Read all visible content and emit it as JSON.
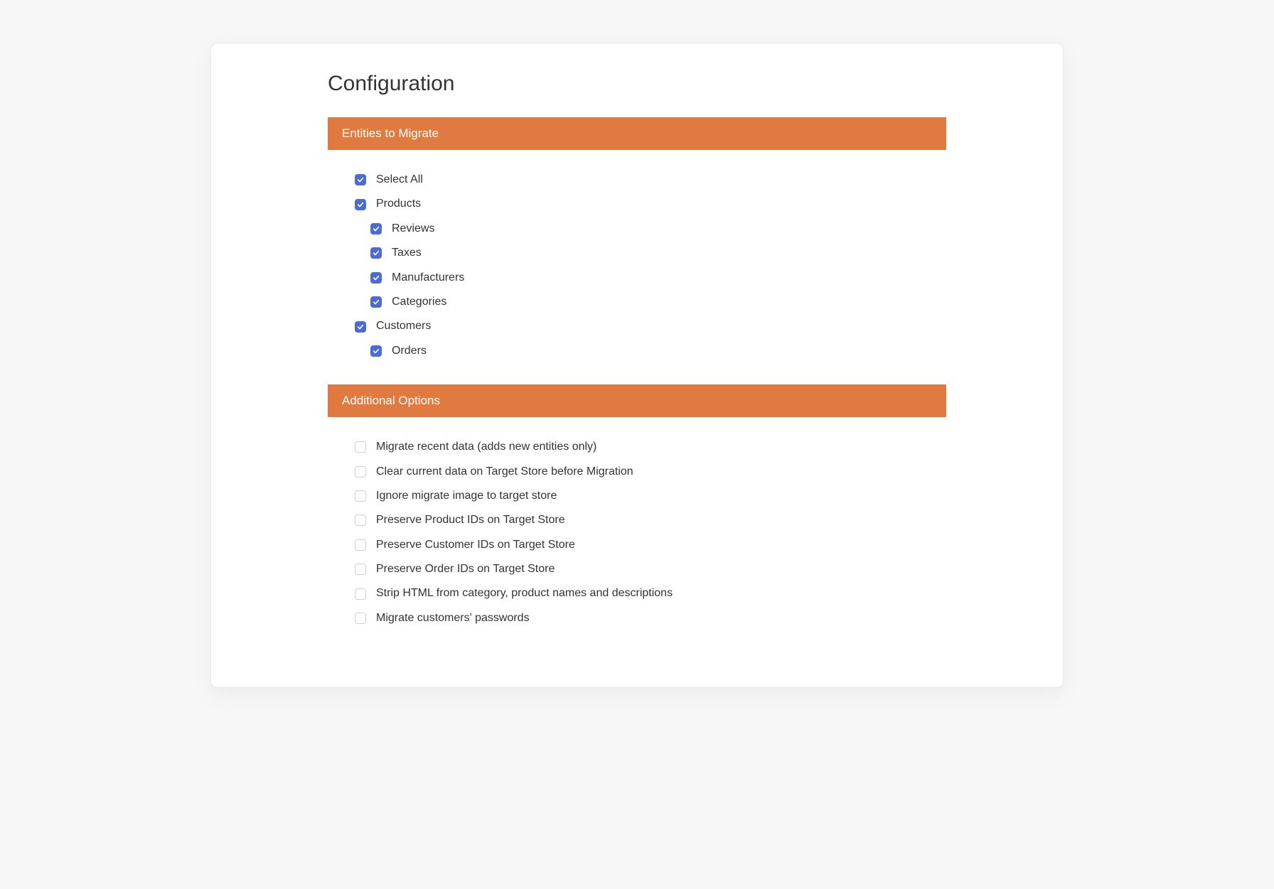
{
  "colors": {
    "page_bg": "#f7f7f7",
    "card_bg": "#ffffff",
    "card_border": "#e6e6e6",
    "header_bg": "#e07a40",
    "header_text": "#ffffff",
    "text": "#333333",
    "checkbox_checked_bg": "#4a6cd4",
    "checkbox_unchecked_border": "#cfcfcf"
  },
  "page": {
    "title": "Configuration"
  },
  "sections": {
    "entities": {
      "header": "Entities to Migrate",
      "items": [
        {
          "label": "Select All",
          "checked": true,
          "indent": 0
        },
        {
          "label": "Products",
          "checked": true,
          "indent": 0
        },
        {
          "label": "Reviews",
          "checked": true,
          "indent": 1
        },
        {
          "label": "Taxes",
          "checked": true,
          "indent": 1
        },
        {
          "label": "Manufacturers",
          "checked": true,
          "indent": 1
        },
        {
          "label": "Categories",
          "checked": true,
          "indent": 1
        },
        {
          "label": "Customers",
          "checked": true,
          "indent": 0
        },
        {
          "label": "Orders",
          "checked": true,
          "indent": 1
        }
      ]
    },
    "options": {
      "header": "Additional Options",
      "items": [
        {
          "label": "Migrate recent data (adds new entities only)",
          "checked": false,
          "indent": 0
        },
        {
          "label": "Clear current data on Target Store before Migration",
          "checked": false,
          "indent": 0
        },
        {
          "label": "Ignore migrate image to target store",
          "checked": false,
          "indent": 0
        },
        {
          "label": "Preserve Product IDs on Target Store",
          "checked": false,
          "indent": 0
        },
        {
          "label": "Preserve Customer IDs on Target Store",
          "checked": false,
          "indent": 0
        },
        {
          "label": "Preserve Order IDs on Target Store",
          "checked": false,
          "indent": 0
        },
        {
          "label": "Strip HTML from category, product names and descriptions",
          "checked": false,
          "indent": 0
        },
        {
          "label": "Migrate customers' passwords",
          "checked": false,
          "indent": 0
        }
      ]
    }
  }
}
